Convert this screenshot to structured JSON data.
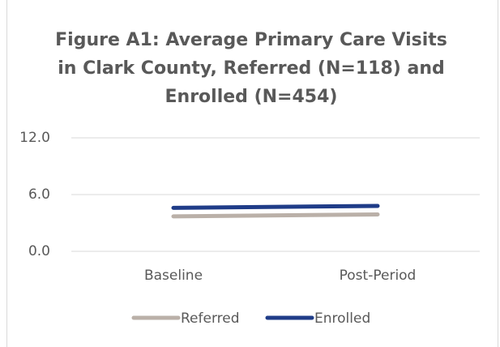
{
  "chart_data": {
    "type": "line",
    "title": "Figure A1: Average Primary Care Visits in Clark County, Referred (N=118) and Enrolled (N=454)",
    "categories": [
      "Baseline",
      "Post-Period"
    ],
    "series": [
      {
        "name": "Referred",
        "color": "#bab0a8",
        "values": [
          3.7,
          3.9
        ]
      },
      {
        "name": "Enrolled",
        "color": "#1f3c88",
        "values": [
          4.6,
          4.8
        ]
      }
    ],
    "ylim": [
      0,
      12
    ],
    "yticks": [
      {
        "value": 0,
        "label": "0.0"
      },
      {
        "value": 6,
        "label": "6.0"
      },
      {
        "value": 12,
        "label": "12.0"
      }
    ],
    "grid": true,
    "legend": "bottom"
  }
}
